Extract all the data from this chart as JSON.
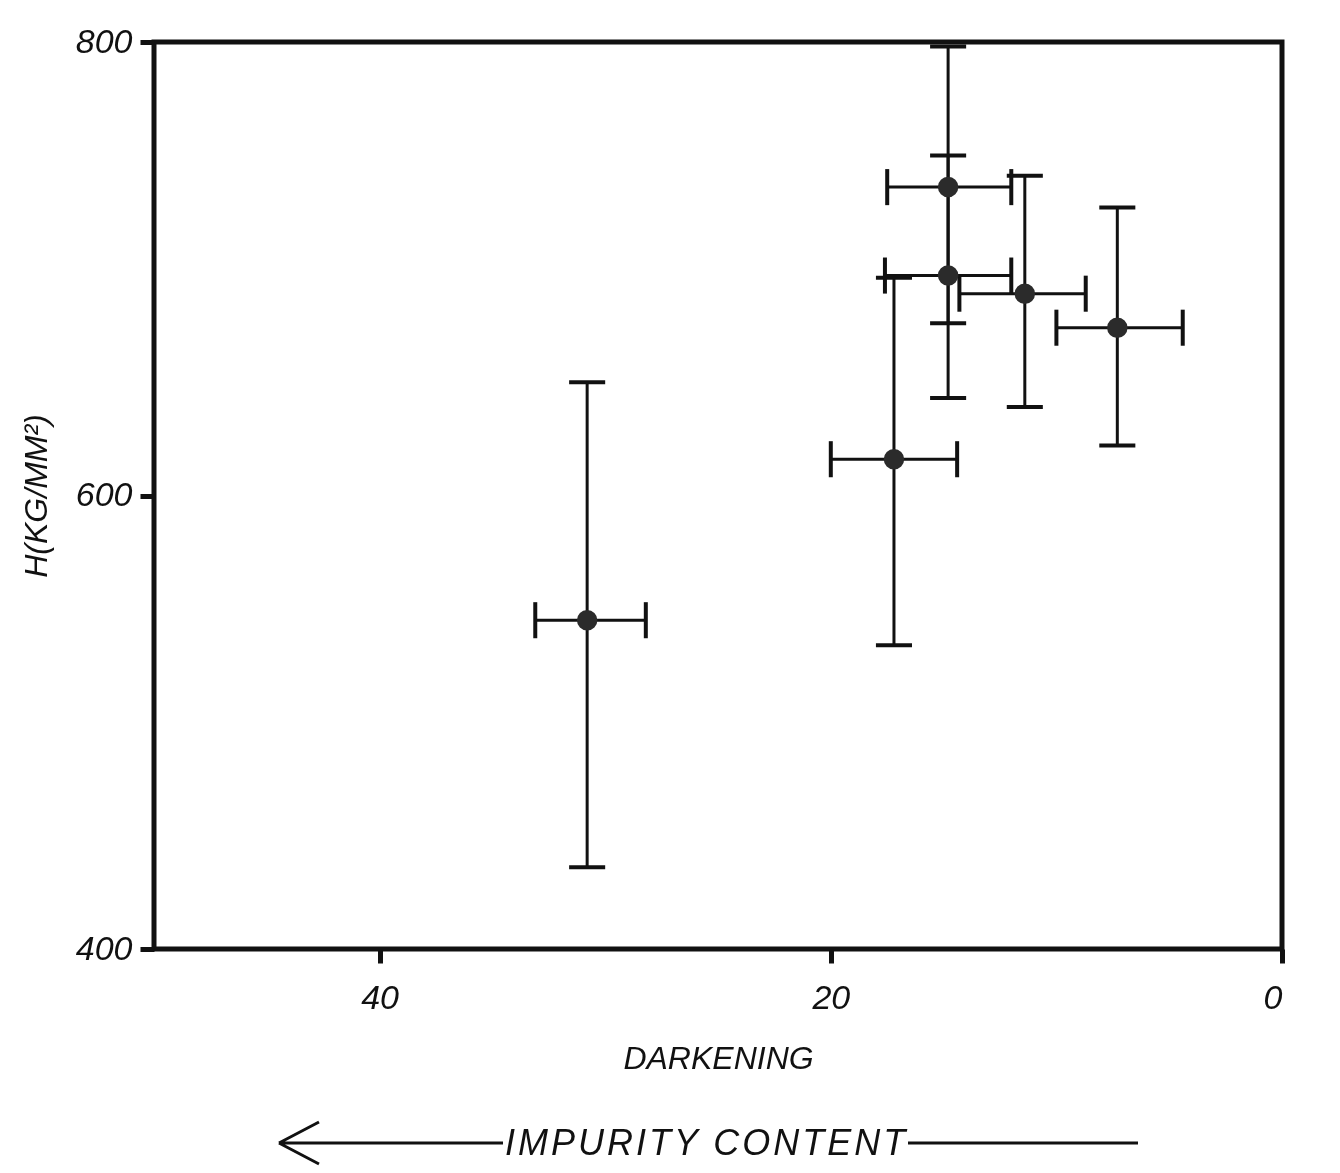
{
  "chart_data": {
    "type": "scatter",
    "xlabel": "DARKENING",
    "ylabel": "H(KG/MM²)",
    "annotations": [
      "IMPURITY CONTENT"
    ],
    "xlim": [
      50,
      0
    ],
    "xticks": [
      40,
      20,
      0
    ],
    "ylim": [
      400,
      800
    ],
    "yticks": [
      400,
      600,
      800
    ],
    "marker": "circle",
    "series": [
      {
        "color": "#2b2b2b",
        "x": [
          30.8,
          17.2,
          14.8,
          14.8,
          11.4,
          7.3
        ],
        "values": [
          545,
          616,
          697,
          736,
          689,
          674
        ],
        "xerrors": [
          [
            28.2,
            33.1
          ],
          [
            14.4,
            20.0
          ],
          [
            12.0,
            17.6
          ],
          [
            12.0,
            17.5
          ],
          [
            8.7,
            14.3
          ],
          [
            4.4,
            10.0
          ]
        ],
        "errors": [
          [
            436,
            650
          ],
          [
            534,
            696
          ],
          [
            643,
            750
          ],
          [
            676,
            798
          ],
          [
            639,
            741
          ],
          [
            622,
            727
          ]
        ]
      }
    ]
  }
}
